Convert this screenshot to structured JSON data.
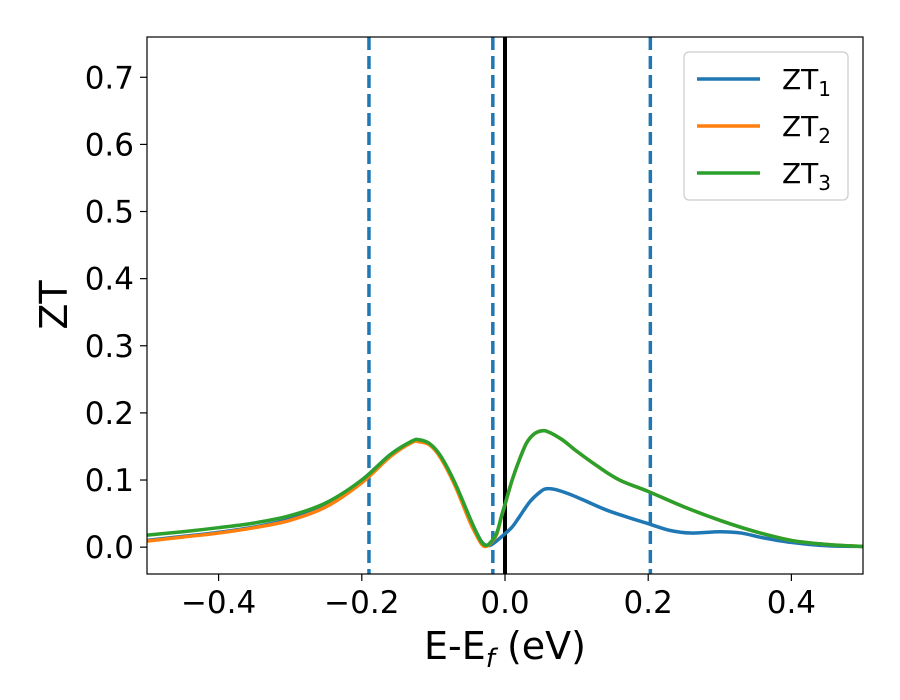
{
  "chart_data": {
    "type": "line",
    "xlabel": {
      "base": "E-E",
      "sub": "f",
      "unit": " (eV)"
    },
    "ylabel": "ZT",
    "xlim": [
      -0.5,
      0.5
    ],
    "ylim": [
      -0.04,
      0.76
    ],
    "x_ticks": [
      {
        "value": -0.4,
        "label": "−0.4"
      },
      {
        "value": -0.2,
        "label": "−0.2"
      },
      {
        "value": 0.0,
        "label": "0.0"
      },
      {
        "value": 0.2,
        "label": "0.2"
      },
      {
        "value": 0.4,
        "label": "0.4"
      }
    ],
    "y_ticks": [
      {
        "value": 0.0,
        "label": "0.0"
      },
      {
        "value": 0.1,
        "label": "0.1"
      },
      {
        "value": 0.2,
        "label": "0.2"
      },
      {
        "value": 0.3,
        "label": "0.3"
      },
      {
        "value": 0.4,
        "label": "0.4"
      },
      {
        "value": 0.5,
        "label": "0.5"
      },
      {
        "value": 0.6,
        "label": "0.6"
      },
      {
        "value": 0.7,
        "label": "0.7"
      }
    ],
    "grid": false,
    "legend_position": "top-right",
    "vertical_lines": [
      {
        "x": -0.19,
        "style": "dashed",
        "color": "#1f77b4"
      },
      {
        "x": -0.017,
        "style": "dashed",
        "color": "#1f77b4"
      },
      {
        "x": 0.203,
        "style": "dashed",
        "color": "#1f77b4"
      },
      {
        "x": 0.0,
        "style": "solid",
        "color": "#000000"
      }
    ],
    "series": [
      {
        "name": "ZT",
        "sub": "1",
        "color": "#1f77b4",
        "points": [
          [
            -0.5,
            0.01
          ],
          [
            -0.45,
            0.016
          ],
          [
            -0.4,
            0.022
          ],
          [
            -0.35,
            0.03
          ],
          [
            -0.3,
            0.042
          ],
          [
            -0.25,
            0.063
          ],
          [
            -0.2,
            0.1
          ],
          [
            -0.16,
            0.138
          ],
          [
            -0.13,
            0.157
          ],
          [
            -0.12,
            0.158
          ],
          [
            -0.105,
            0.153
          ],
          [
            -0.09,
            0.135
          ],
          [
            -0.07,
            0.095
          ],
          [
            -0.05,
            0.045
          ],
          [
            -0.035,
            0.012
          ],
          [
            -0.027,
            0.003
          ],
          [
            -0.02,
            0.003
          ],
          [
            -0.012,
            0.009
          ],
          [
            0.0,
            0.02
          ],
          [
            0.01,
            0.03
          ],
          [
            0.02,
            0.045
          ],
          [
            0.035,
            0.068
          ],
          [
            0.05,
            0.083
          ],
          [
            0.058,
            0.087
          ],
          [
            0.07,
            0.086
          ],
          [
            0.09,
            0.079
          ],
          [
            0.11,
            0.07
          ],
          [
            0.14,
            0.056
          ],
          [
            0.17,
            0.045
          ],
          [
            0.2,
            0.035
          ],
          [
            0.23,
            0.025
          ],
          [
            0.26,
            0.021
          ],
          [
            0.3,
            0.023
          ],
          [
            0.33,
            0.021
          ],
          [
            0.36,
            0.014
          ],
          [
            0.4,
            0.007
          ],
          [
            0.45,
            0.002
          ],
          [
            0.5,
            0.001
          ]
        ]
      },
      {
        "name": "ZT",
        "sub": "2",
        "color": "#ff7f0e",
        "points": [
          [
            -0.5,
            0.009
          ],
          [
            -0.45,
            0.015
          ],
          [
            -0.4,
            0.021
          ],
          [
            -0.35,
            0.029
          ],
          [
            -0.3,
            0.04
          ],
          [
            -0.25,
            0.06
          ],
          [
            -0.2,
            0.096
          ],
          [
            -0.16,
            0.135
          ],
          [
            -0.13,
            0.156
          ],
          [
            -0.12,
            0.157
          ],
          [
            -0.105,
            0.152
          ],
          [
            -0.09,
            0.133
          ],
          [
            -0.07,
            0.092
          ],
          [
            -0.05,
            0.04
          ],
          [
            -0.04,
            0.018
          ],
          [
            -0.033,
            0.005
          ],
          [
            -0.028,
            0.001
          ],
          [
            -0.022,
            0.004
          ],
          [
            -0.012,
            0.018
          ],
          [
            -0.005,
            0.045
          ],
          [
            0.0,
            0.063
          ],
          [
            0.01,
            0.1
          ],
          [
            0.02,
            0.13
          ],
          [
            0.03,
            0.155
          ],
          [
            0.04,
            0.168
          ],
          [
            0.05,
            0.173
          ],
          [
            0.06,
            0.172
          ],
          [
            0.08,
            0.16
          ],
          [
            0.1,
            0.143
          ],
          [
            0.13,
            0.12
          ],
          [
            0.16,
            0.1
          ],
          [
            0.2,
            0.083
          ],
          [
            0.25,
            0.06
          ],
          [
            0.3,
            0.04
          ],
          [
            0.35,
            0.023
          ],
          [
            0.4,
            0.01
          ],
          [
            0.45,
            0.004
          ],
          [
            0.5,
            0.001
          ]
        ]
      },
      {
        "name": "ZT",
        "sub": "3",
        "color": "#2ca02c",
        "points": [
          [
            -0.5,
            0.018
          ],
          [
            -0.45,
            0.023
          ],
          [
            -0.4,
            0.029
          ],
          [
            -0.35,
            0.036
          ],
          [
            -0.3,
            0.047
          ],
          [
            -0.25,
            0.066
          ],
          [
            -0.2,
            0.1
          ],
          [
            -0.16,
            0.138
          ],
          [
            -0.13,
            0.158
          ],
          [
            -0.12,
            0.16
          ],
          [
            -0.105,
            0.154
          ],
          [
            -0.09,
            0.136
          ],
          [
            -0.07,
            0.096
          ],
          [
            -0.05,
            0.046
          ],
          [
            -0.04,
            0.022
          ],
          [
            -0.033,
            0.008
          ],
          [
            -0.028,
            0.003
          ],
          [
            -0.022,
            0.005
          ],
          [
            -0.012,
            0.02
          ],
          [
            -0.005,
            0.046
          ],
          [
            0.0,
            0.064
          ],
          [
            0.01,
            0.1
          ],
          [
            0.02,
            0.13
          ],
          [
            0.03,
            0.155
          ],
          [
            0.04,
            0.168
          ],
          [
            0.05,
            0.173
          ],
          [
            0.06,
            0.172
          ],
          [
            0.08,
            0.16
          ],
          [
            0.1,
            0.143
          ],
          [
            0.13,
            0.12
          ],
          [
            0.16,
            0.1
          ],
          [
            0.2,
            0.083
          ],
          [
            0.25,
            0.06
          ],
          [
            0.3,
            0.04
          ],
          [
            0.35,
            0.023
          ],
          [
            0.4,
            0.01
          ],
          [
            0.45,
            0.004
          ],
          [
            0.5,
            0.001
          ]
        ]
      }
    ]
  }
}
